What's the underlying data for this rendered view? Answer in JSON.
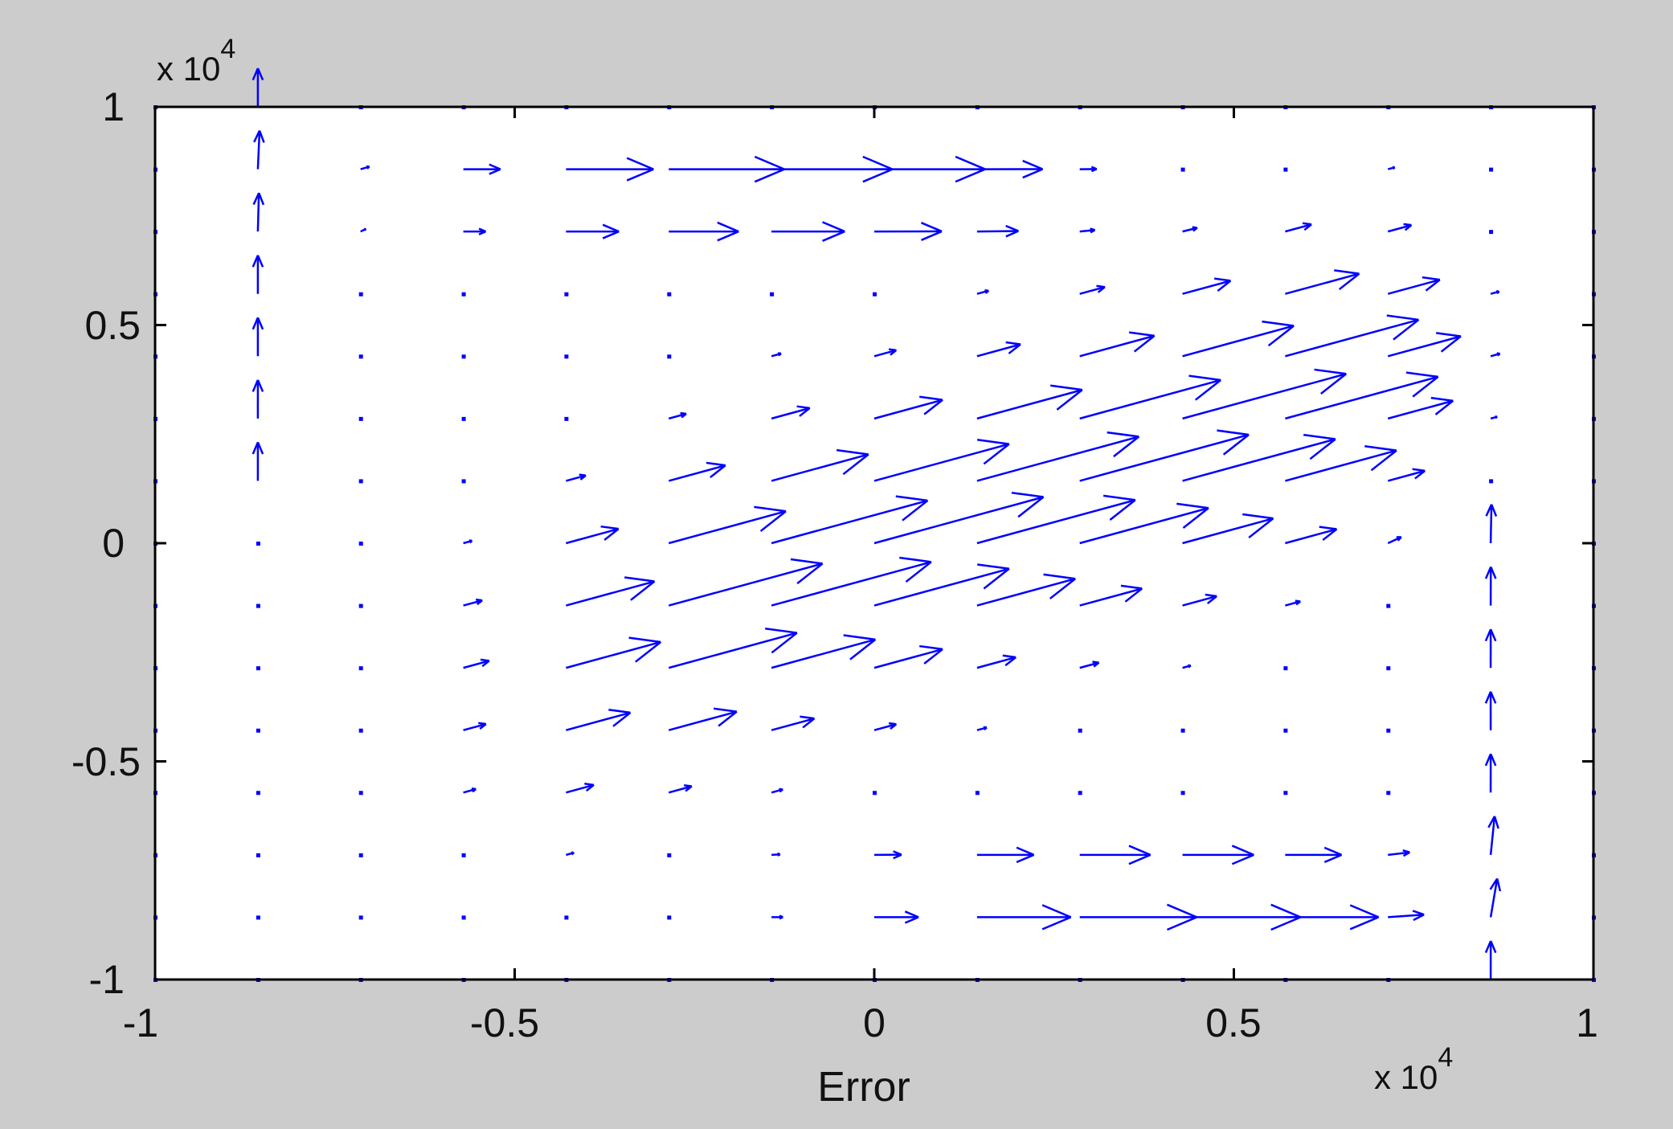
{
  "chart_data": {
    "type": "quiver",
    "title": "",
    "xlabel": "Error",
    "ylabel": "",
    "x_multiplier": "x 10^4",
    "y_multiplier": "x 10^4",
    "x_multiplier_base": "x 10",
    "x_multiplier_exp": "4",
    "y_multiplier_base": "x 10",
    "y_multiplier_exp": "4",
    "xlim": [
      -10000,
      10000
    ],
    "ylim": [
      -10000,
      10000
    ],
    "xticks": [
      -10000,
      -5000,
      0,
      5000,
      10000
    ],
    "yticks": [
      -10000,
      -5000,
      0,
      5000,
      10000
    ],
    "xtick_labels": [
      "-1",
      "-0.5",
      "0",
      "0.5",
      "1"
    ],
    "ytick_labels": [
      "-1",
      "-0.5",
      "0",
      "0.5",
      "1"
    ],
    "grid": false,
    "arrow_color": "#0000ff",
    "background_color": "#cccccc",
    "plot_background": "#ffffff",
    "grid_x": [
      -10000,
      -8571,
      -7143,
      -5714,
      -4286,
      -2857,
      -1429,
      0,
      1429,
      2857,
      4286,
      5714,
      7143,
      8571,
      10000
    ],
    "grid_y": [
      -10000,
      -8571,
      -7143,
      -5714,
      -4286,
      -2857,
      -1429,
      0,
      1429,
      2857,
      4286,
      5714,
      7143,
      8571,
      10000
    ],
    "field_description": "arrow components (u, v) computed per grid point by the renderer"
  }
}
